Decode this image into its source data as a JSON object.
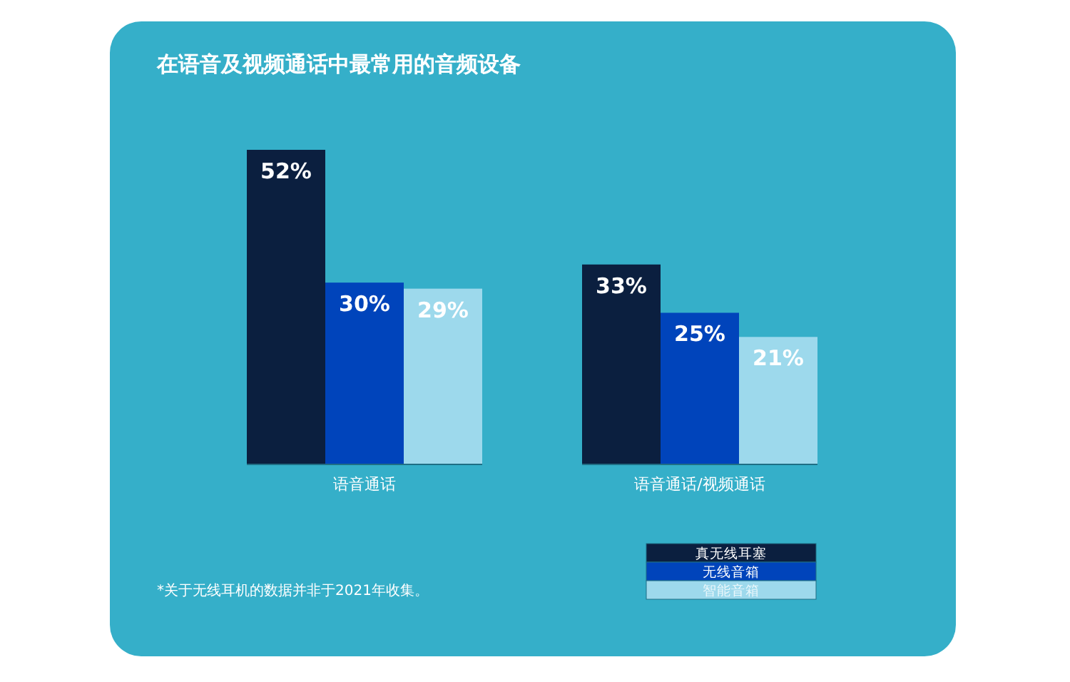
{
  "chart_data": {
    "type": "bar",
    "title": "在语音及视频通话中最常用的音频设备",
    "categories": [
      "语音通话",
      "语音通话/视频通话"
    ],
    "series": [
      {
        "name": "真无线耳塞",
        "color": "#0b1f3f",
        "values": [
          52,
          33
        ],
        "value_labels": [
          "52%",
          "33%"
        ]
      },
      {
        "name": "无线音箱",
        "color": "#0044bb",
        "values": [
          30,
          25
        ],
        "value_labels": [
          "30%",
          "25%"
        ]
      },
      {
        "name": "智能音箱",
        "color": "#9dd9ec",
        "values": [
          29,
          21
        ],
        "value_labels": [
          "29%",
          "21%"
        ]
      }
    ],
    "legend": "bottom right",
    "annotations": [
      "*关于无线耳机的数据并非于2021年收集。"
    ]
  }
}
